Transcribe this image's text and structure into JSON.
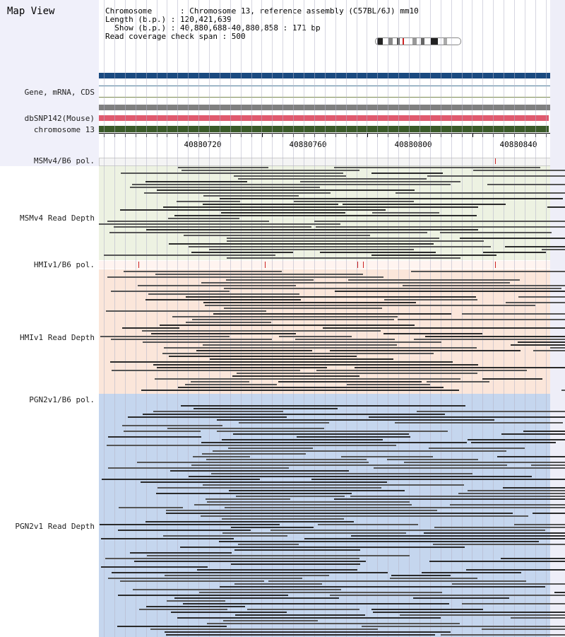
{
  "panel_title": "Map View",
  "header": {
    "chromosome_line": "Chromosome      : Chromosome 13, reference assembly (C57BL/6J) mm10",
    "length_line": "Length (b.p.) : 120,421,639",
    "show_line": "  Show (b.p.) : 40,880,688-40,880,858 : 171 bp",
    "coverage_line": "Read coverage check span : 500"
  },
  "track_labels": {
    "gene": "Gene, mRNA, CDS",
    "dbsnp": "dbSNP142(Mouse)",
    "chromosome": "chromosome 13",
    "msm_pol": "MSMv4/B6 pol.",
    "msm_depth": "MSMv4 Read Depth",
    "hmi_pol": "HMIv1/B6 pol.",
    "hmi_depth": "HMIv1 Read Depth",
    "pgn_pol": "PGN2v1/B6 pol.",
    "pgn_depth": "PGN2v1 Read Depth"
  },
  "ruler": {
    "labels": [
      "40880720",
      "40880760",
      "40880800",
      "40880840"
    ]
  },
  "colors": {
    "gene_bar": "#1a4a80",
    "dbsnp_bar": "#e05a6e",
    "chromosome_bar": "#3a5a28",
    "msm_bg": "#edf2e2",
    "hmi_bg": "#fbe6da",
    "pgn_bg": "#c5d6ee",
    "snp_mark": "#cc2222",
    "read_dark": "#2a2a2a",
    "read_mid": "#555555"
  }
}
